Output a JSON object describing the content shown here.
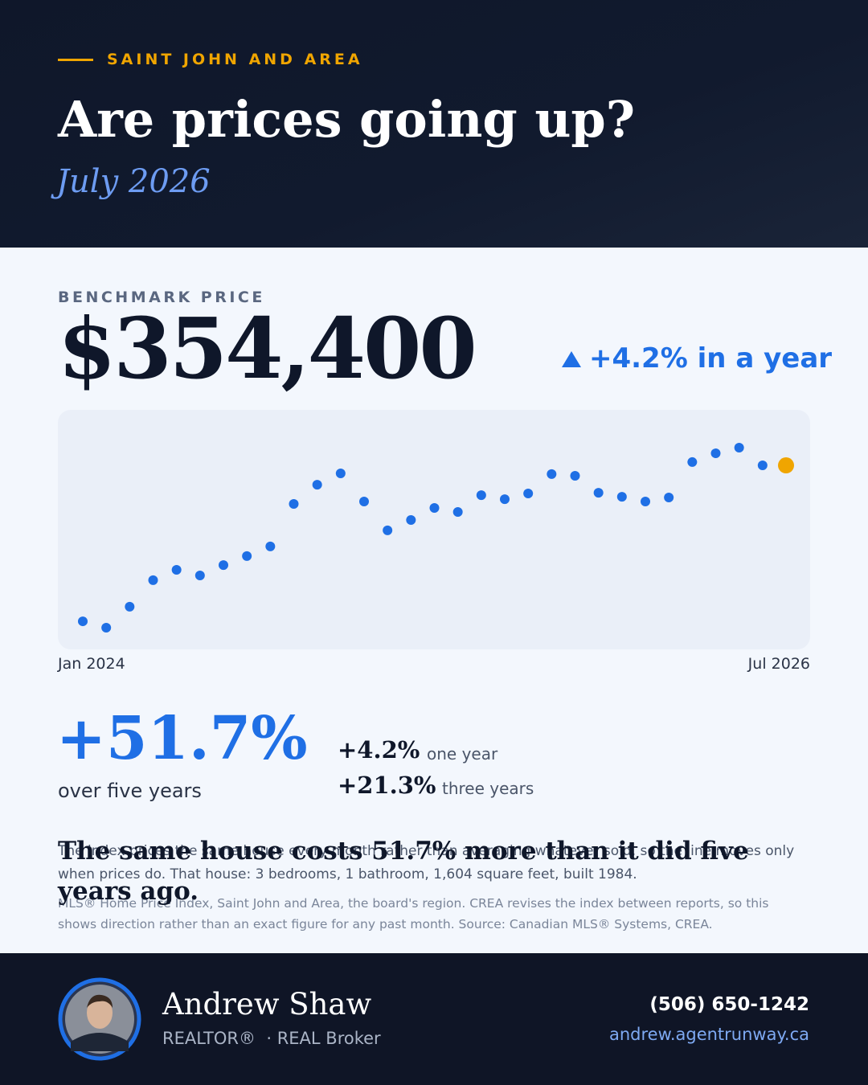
{
  "header": {
    "eyebrow": "SAINT JOHN AND AREA",
    "title": "Are prices going up?",
    "subtitle": "July 2026"
  },
  "benchmark": {
    "label": "BENCHMARK PRICE",
    "price": "$354,400",
    "change": "+4.2% in a year"
  },
  "chart_data": {
    "type": "scatter",
    "categories": [
      "Jan 2024",
      null,
      null,
      null,
      null,
      null,
      null,
      null,
      null,
      null,
      null,
      null,
      null,
      null,
      null,
      null,
      null,
      null,
      null,
      null,
      null,
      null,
      null,
      null,
      null,
      null,
      null,
      null,
      null,
      null,
      "Jul 2026"
    ],
    "values": [
      288400,
      285700,
      294600,
      305800,
      310200,
      307800,
      312200,
      316000,
      320100,
      338100,
      346200,
      351000,
      339100,
      326900,
      331300,
      336400,
      334700,
      341800,
      340100,
      342500,
      350700,
      350000,
      342800,
      341100,
      339100,
      340800,
      355800,
      359500,
      361900,
      354400,
      354400
    ],
    "color": "#1f6fe5",
    "highlight_color": "#f0a500"
  },
  "stats": {
    "main": "+51.7%",
    "main_label": "over five years",
    "rows": [
      {
        "value": "+4.2%",
        "label": "one year"
      },
      {
        "value": "+21.3%",
        "label": "three years"
      }
    ]
  },
  "headline": "The same house costs 51.7% more than it did five years ago.",
  "note": "The index prices the same house every month rather than averaging whatever sold, so the line moves only when prices do. That house: 3 bedrooms, 1 bathroom, 1,604 square feet, built 1984.",
  "source": "MLS® Home Price Index, Saint John and Area, the board's region. CREA revises the index between reports, so this shows direction rather than an exact figure for any past month. Source: Canadian MLS® Systems, CREA.",
  "agent": {
    "name": "Andrew Shaw",
    "title": "REALTOR®",
    "broker": "· REAL Broker",
    "phone": "(506) 650-1242",
    "website": "andrew.agentrunway.ca"
  }
}
